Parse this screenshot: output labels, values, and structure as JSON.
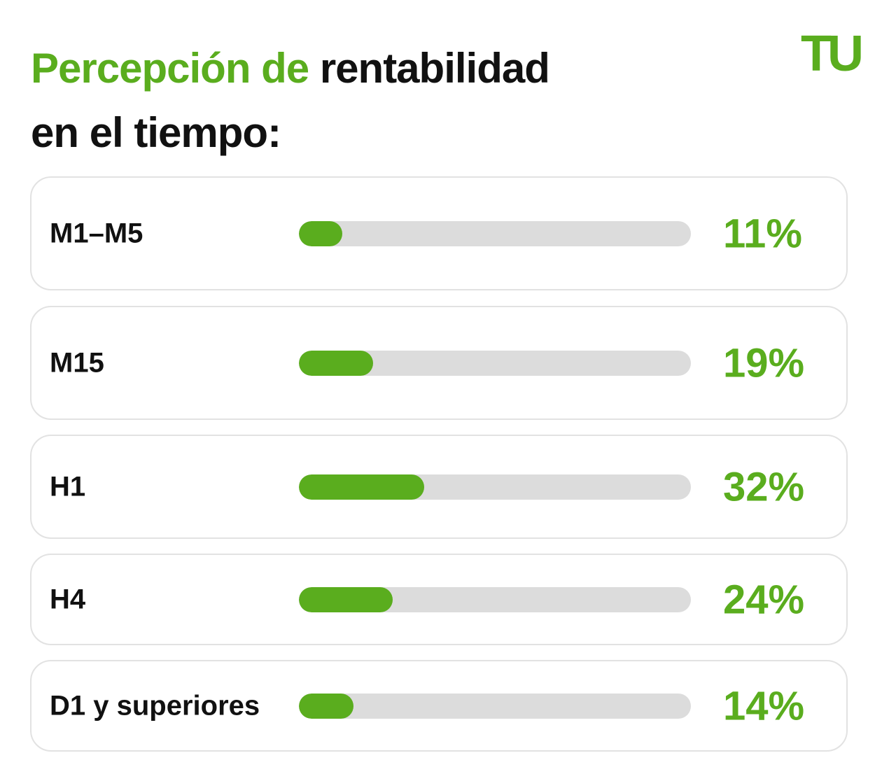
{
  "chart_data": {
    "type": "bar",
    "orientation": "horizontal",
    "title": [
      "Percepción de",
      "rentabilidad",
      "en el tiempo:"
    ],
    "logo": "TU",
    "categories": [
      "M1–M5",
      "M15",
      "H1",
      "H4",
      "D1 y superiores"
    ],
    "values": [
      11,
      19,
      32,
      24,
      14
    ],
    "value_labels": [
      "11%",
      "19%",
      "32%",
      "24%",
      "14%"
    ],
    "color": "#5aad1e",
    "track_color": "#dcdcdc",
    "xlim": [
      0,
      100
    ]
  }
}
